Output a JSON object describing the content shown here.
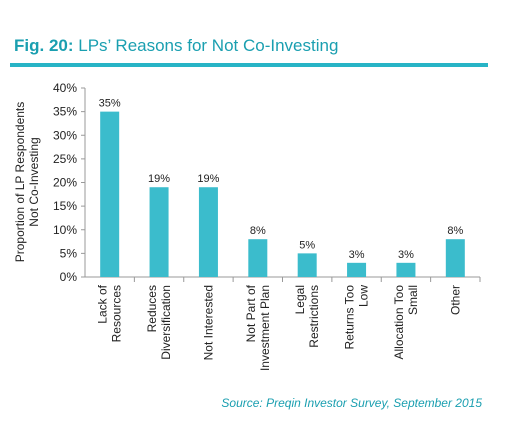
{
  "header": {
    "fig_label": "Fig. 20:",
    "title": "LPs’ Reasons for Not Co-Investing"
  },
  "source": "Source: Preqin Investor Survey, September 2015",
  "colors": {
    "bar": "#3bbccc",
    "title": "#1a9fb0",
    "rule": "#27b4c6",
    "axis": "#999999",
    "text": "#222222"
  },
  "chart_data": {
    "type": "bar",
    "title": "LPs’ Reasons for Not Co-Investing",
    "ylabel": "Proportion of LP Respondents Not Co-Investing",
    "xlabel": "",
    "ylim": [
      0,
      40
    ],
    "yticks": [
      0,
      5,
      10,
      15,
      20,
      25,
      30,
      35,
      40
    ],
    "ytick_labels": [
      "0%",
      "5%",
      "10%",
      "15%",
      "20%",
      "25%",
      "30%",
      "35%",
      "40%"
    ],
    "grid": false,
    "categories": [
      "Lack of Resources",
      "Reduces Diversification",
      "Not Interested",
      "Not Part of Investment Plan",
      "Legal Restrictions",
      "Returns Too Low",
      "Allocation Too Small",
      "Other"
    ],
    "values": [
      35,
      19,
      19,
      8,
      5,
      3,
      3,
      8
    ],
    "data_labels": [
      "35%",
      "19%",
      "19%",
      "8%",
      "5%",
      "3%",
      "3%",
      "8%"
    ]
  }
}
